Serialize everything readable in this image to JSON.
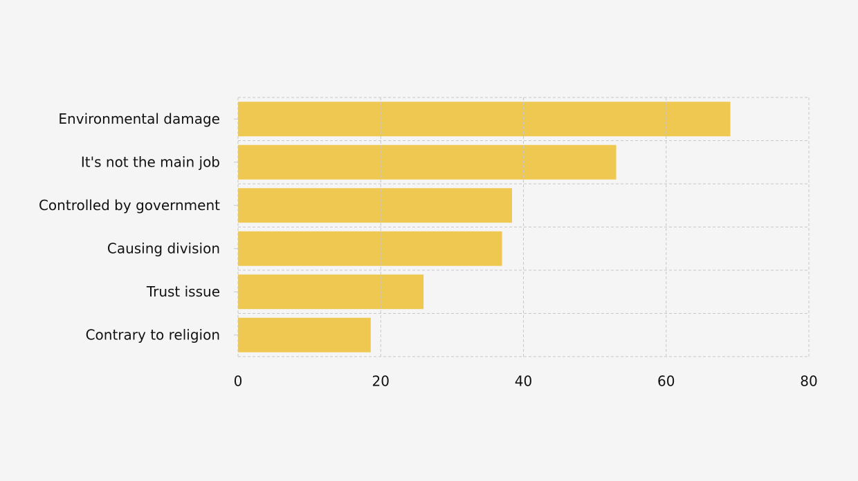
{
  "chart_data": {
    "type": "bar",
    "orientation": "horizontal",
    "categories": [
      "Environmental damage",
      "It's not the main job",
      "Controlled by government",
      "Causing division",
      "Trust issue",
      "Contrary to religion"
    ],
    "values": [
      69,
      53,
      38.4,
      37,
      26,
      18.6
    ],
    "color": "#efc851",
    "xlim": [
      0,
      80
    ],
    "xticks": [
      0,
      20,
      40,
      60,
      80
    ],
    "grid": true
  }
}
